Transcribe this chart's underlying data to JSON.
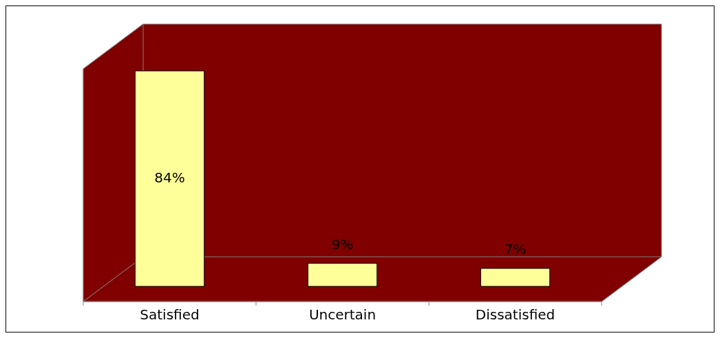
{
  "chart_data": {
    "type": "bar",
    "categories": [
      "Satisfied",
      "Uncertain",
      "Dissatisfied"
    ],
    "values": [
      84,
      9,
      7
    ],
    "value_labels": [
      "84%",
      "9%",
      "7%"
    ],
    "color": "#ffff99"
  }
}
